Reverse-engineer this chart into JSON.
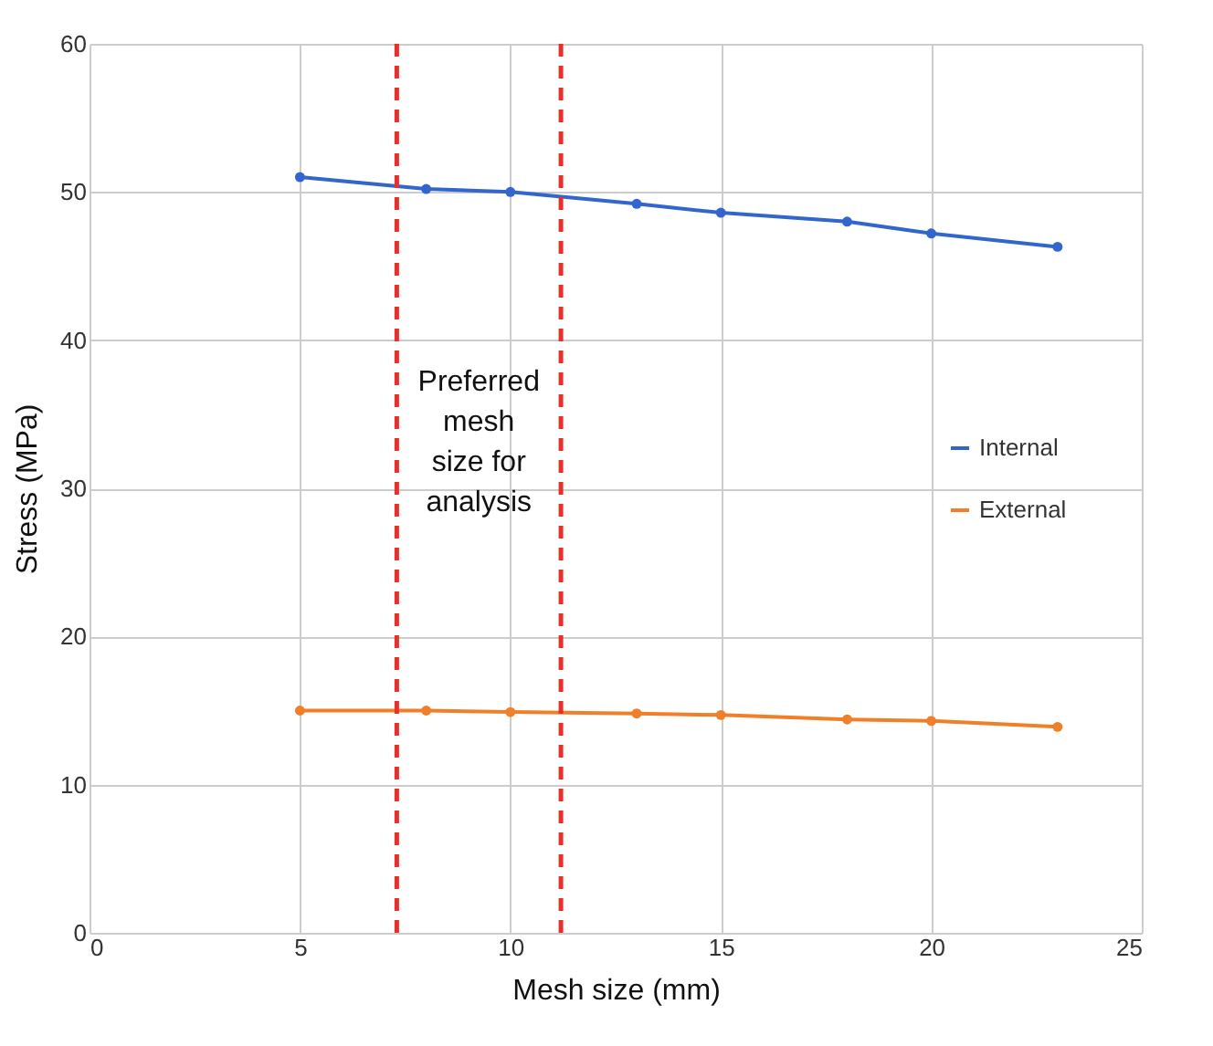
{
  "chart_data": {
    "type": "line",
    "xlabel": "Mesh size (mm)",
    "ylabel": "Stress (MPa)",
    "x": [
      5,
      8,
      10,
      13,
      15,
      18,
      20,
      23
    ],
    "series": [
      {
        "name": "Internal",
        "color": "#3366cc",
        "values": [
          51.0,
          50.2,
          50.0,
          49.2,
          48.6,
          48.0,
          47.2,
          46.3
        ]
      },
      {
        "name": "External",
        "color": "#f07f2a",
        "values": [
          15.0,
          15.0,
          14.9,
          14.8,
          14.7,
          14.4,
          14.3,
          13.9
        ]
      }
    ],
    "xlim": [
      0,
      25
    ],
    "xticks": [
      0,
      5,
      10,
      15,
      20,
      25
    ],
    "ylim": [
      0,
      60
    ],
    "yticks": [
      0,
      10,
      20,
      30,
      40,
      50,
      60
    ],
    "grid": true,
    "legend": "right",
    "marker": "circle",
    "line_style": "solid",
    "ref_lines": [
      {
        "axis": "x",
        "value": 7.3,
        "color": "#e8302a",
        "line_style": "dashed"
      },
      {
        "axis": "x",
        "value": 11.2,
        "color": "#e8302a",
        "line_style": "dashed"
      }
    ],
    "annotations": [
      "Preferred mesh size for analysis"
    ]
  }
}
